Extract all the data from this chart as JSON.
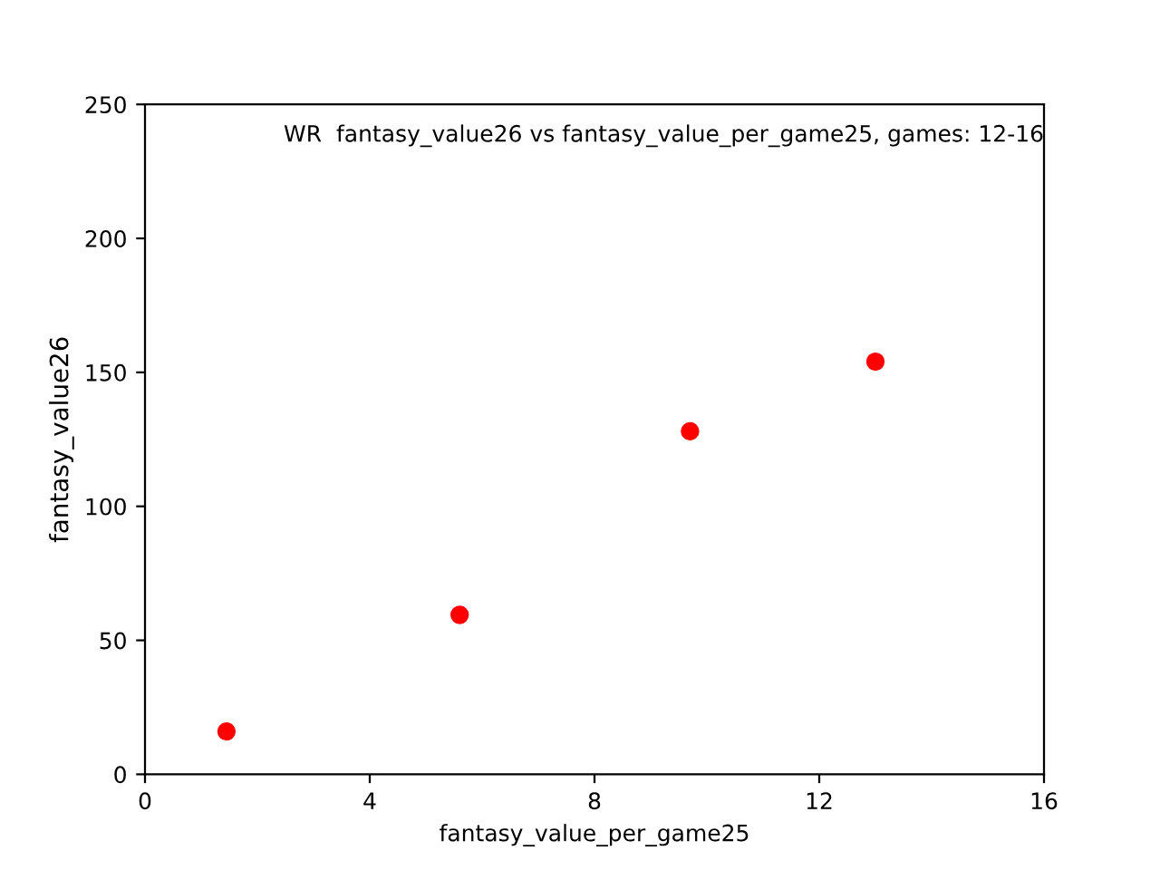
{
  "chart_data": {
    "type": "scatter",
    "title": "WR  fantasy_value26 vs fantasy_value_per_game25, games: 12-16",
    "xlabel": "fantasy_value_per_game25",
    "ylabel": "fantasy_value26",
    "x": [
      1.45,
      5.6,
      9.7,
      13.0
    ],
    "series": [
      {
        "color": "#ff0000",
        "values": [
          16,
          59.5,
          128,
          154
        ]
      }
    ],
    "xlim": [
      0,
      16
    ],
    "xticks": [
      0,
      4,
      8,
      12,
      16
    ],
    "ylim": [
      0,
      250
    ],
    "yticks": [
      0,
      50,
      100,
      150,
      200,
      250
    ],
    "marker": "circle",
    "grid": false,
    "legend": false
  }
}
